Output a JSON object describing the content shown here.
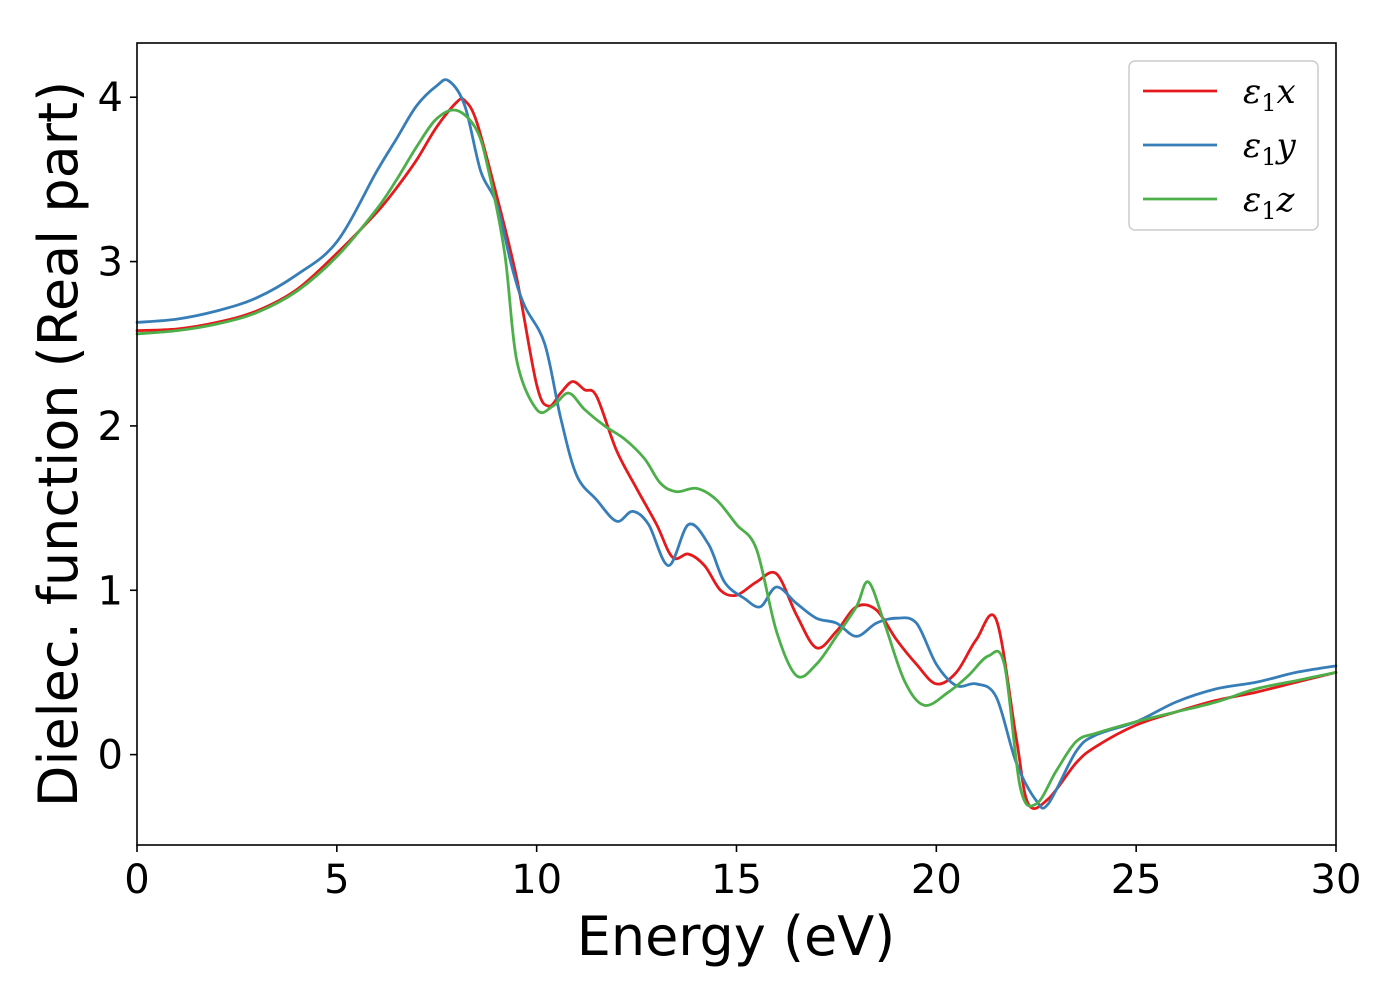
{
  "chart_data": {
    "type": "line",
    "title": "",
    "xlabel": "Energy (eV)",
    "ylabel": "Dielec. function (Real part)",
    "xlim": [
      0,
      30
    ],
    "ylim": [
      -0.55,
      4.33
    ],
    "xticks": [
      0,
      5,
      10,
      15,
      20,
      25,
      30
    ],
    "yticks": [
      0,
      1,
      2,
      3,
      4
    ],
    "grid": false,
    "legend_position": "upper-right",
    "series": [
      {
        "name": "ε1x",
        "legend_main": "ε",
        "legend_sub": "1",
        "legend_var": "x",
        "color": "#e41a1c",
        "points": [
          [
            0,
            2.58
          ],
          [
            1,
            2.59
          ],
          [
            2,
            2.63
          ],
          [
            3,
            2.7
          ],
          [
            4,
            2.83
          ],
          [
            5,
            3.05
          ],
          [
            6,
            3.3
          ],
          [
            6.5,
            3.45
          ],
          [
            7,
            3.62
          ],
          [
            7.5,
            3.82
          ],
          [
            8,
            3.97
          ],
          [
            8.2,
            3.98
          ],
          [
            8.5,
            3.85
          ],
          [
            9,
            3.4
          ],
          [
            9.5,
            2.9
          ],
          [
            10,
            2.25
          ],
          [
            10.3,
            2.12
          ],
          [
            10.6,
            2.2
          ],
          [
            10.9,
            2.27
          ],
          [
            11.2,
            2.22
          ],
          [
            11.5,
            2.18
          ],
          [
            12,
            1.85
          ],
          [
            12.5,
            1.62
          ],
          [
            13,
            1.4
          ],
          [
            13.4,
            1.2
          ],
          [
            13.8,
            1.22
          ],
          [
            14.2,
            1.15
          ],
          [
            14.6,
            1.0
          ],
          [
            15,
            0.97
          ],
          [
            15.5,
            1.05
          ],
          [
            16,
            1.1
          ],
          [
            16.5,
            0.85
          ],
          [
            17,
            0.65
          ],
          [
            17.5,
            0.75
          ],
          [
            18,
            0.9
          ],
          [
            18.5,
            0.88
          ],
          [
            19,
            0.7
          ],
          [
            19.5,
            0.55
          ],
          [
            20,
            0.43
          ],
          [
            20.5,
            0.5
          ],
          [
            21,
            0.7
          ],
          [
            21.5,
            0.82
          ],
          [
            22,
            0.1
          ],
          [
            22.3,
            -0.3
          ],
          [
            22.8,
            -0.27
          ],
          [
            23.5,
            -0.05
          ],
          [
            24,
            0.05
          ],
          [
            25,
            0.18
          ],
          [
            26,
            0.26
          ],
          [
            27,
            0.33
          ],
          [
            28,
            0.38
          ],
          [
            29,
            0.44
          ],
          [
            30,
            0.5
          ]
        ]
      },
      {
        "name": "ε1y",
        "legend_main": "ε",
        "legend_sub": "1",
        "legend_var": "y",
        "color": "#377eb8",
        "points": [
          [
            0,
            2.63
          ],
          [
            1,
            2.65
          ],
          [
            2,
            2.7
          ],
          [
            3,
            2.78
          ],
          [
            4,
            2.92
          ],
          [
            5,
            3.12
          ],
          [
            6,
            3.55
          ],
          [
            6.5,
            3.75
          ],
          [
            7,
            3.95
          ],
          [
            7.5,
            4.07
          ],
          [
            7.8,
            4.1
          ],
          [
            8.2,
            3.95
          ],
          [
            8.6,
            3.55
          ],
          [
            9,
            3.35
          ],
          [
            9.4,
            2.95
          ],
          [
            9.7,
            2.73
          ],
          [
            10.2,
            2.5
          ],
          [
            10.6,
            2.05
          ],
          [
            11,
            1.7
          ],
          [
            11.5,
            1.55
          ],
          [
            12,
            1.42
          ],
          [
            12.4,
            1.48
          ],
          [
            12.8,
            1.4
          ],
          [
            13.3,
            1.15
          ],
          [
            13.8,
            1.4
          ],
          [
            14.3,
            1.28
          ],
          [
            14.7,
            1.05
          ],
          [
            15.2,
            0.95
          ],
          [
            15.6,
            0.9
          ],
          [
            16,
            1.02
          ],
          [
            16.5,
            0.92
          ],
          [
            17,
            0.83
          ],
          [
            17.5,
            0.8
          ],
          [
            18,
            0.72
          ],
          [
            18.5,
            0.8
          ],
          [
            19,
            0.83
          ],
          [
            19.5,
            0.8
          ],
          [
            20,
            0.55
          ],
          [
            20.5,
            0.42
          ],
          [
            21,
            0.43
          ],
          [
            21.5,
            0.35
          ],
          [
            22,
            -0.05
          ],
          [
            22.5,
            -0.28
          ],
          [
            22.8,
            -0.3
          ],
          [
            23.5,
            0.02
          ],
          [
            24,
            0.12
          ],
          [
            25,
            0.2
          ],
          [
            26,
            0.32
          ],
          [
            27,
            0.4
          ],
          [
            28,
            0.44
          ],
          [
            29,
            0.5
          ],
          [
            30,
            0.54
          ]
        ]
      },
      {
        "name": "ε1z",
        "legend_main": "ε",
        "legend_sub": "1",
        "legend_var": "z",
        "color": "#4daf4a",
        "points": [
          [
            0,
            2.56
          ],
          [
            1,
            2.58
          ],
          [
            2,
            2.62
          ],
          [
            3,
            2.69
          ],
          [
            4,
            2.82
          ],
          [
            5,
            3.03
          ],
          [
            6,
            3.32
          ],
          [
            6.5,
            3.5
          ],
          [
            7,
            3.7
          ],
          [
            7.5,
            3.87
          ],
          [
            8,
            3.92
          ],
          [
            8.5,
            3.8
          ],
          [
            8.8,
            3.55
          ],
          [
            9.2,
            3.05
          ],
          [
            9.5,
            2.4
          ],
          [
            10,
            2.1
          ],
          [
            10.4,
            2.12
          ],
          [
            10.8,
            2.2
          ],
          [
            11.2,
            2.1
          ],
          [
            11.7,
            2.0
          ],
          [
            12.2,
            1.92
          ],
          [
            12.7,
            1.8
          ],
          [
            13.1,
            1.65
          ],
          [
            13.5,
            1.6
          ],
          [
            14,
            1.62
          ],
          [
            14.5,
            1.55
          ],
          [
            15,
            1.4
          ],
          [
            15.5,
            1.25
          ],
          [
            16,
            0.75
          ],
          [
            16.5,
            0.48
          ],
          [
            17,
            0.55
          ],
          [
            17.5,
            0.72
          ],
          [
            18,
            0.9
          ],
          [
            18.3,
            1.05
          ],
          [
            18.7,
            0.8
          ],
          [
            19.2,
            0.45
          ],
          [
            19.7,
            0.3
          ],
          [
            20.3,
            0.38
          ],
          [
            20.8,
            0.48
          ],
          [
            21.3,
            0.6
          ],
          [
            21.7,
            0.55
          ],
          [
            22.1,
            -0.2
          ],
          [
            22.5,
            -0.3
          ],
          [
            23,
            -0.1
          ],
          [
            23.5,
            0.08
          ],
          [
            24,
            0.13
          ],
          [
            25,
            0.2
          ],
          [
            26,
            0.26
          ],
          [
            27,
            0.32
          ],
          [
            28,
            0.4
          ],
          [
            29,
            0.45
          ],
          [
            30,
            0.5
          ]
        ]
      }
    ]
  }
}
